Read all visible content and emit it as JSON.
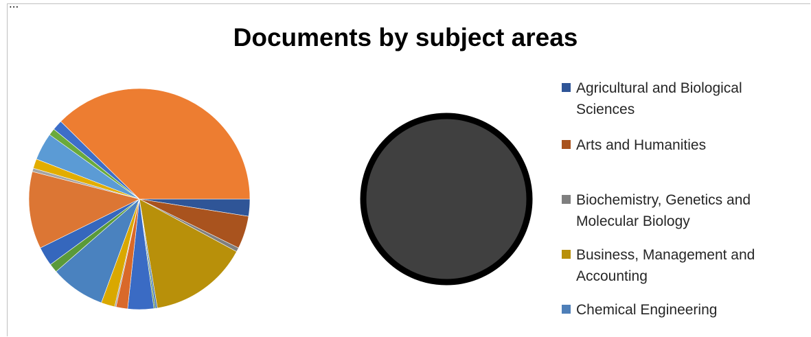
{
  "page": {
    "caption": "...",
    "title": "Documents by subject areas"
  },
  "chart_data": {
    "type": "pie",
    "title": "Documents by subject areas",
    "start_angle_deg": 0,
    "direction": "clockwise",
    "slices": [
      {
        "label": "Agricultural and Biological Sciences",
        "value": 2.5,
        "color": "#2f5597"
      },
      {
        "label": "Arts and Humanities",
        "value": 4.8,
        "color": "#a9531e"
      },
      {
        "label": "Biochemistry, Genetics and Molecular Biology",
        "value": 0.6,
        "color": "#7f7f7f"
      },
      {
        "label": "Business, Management and Accounting",
        "value": 14.5,
        "color": "#b8900a"
      },
      {
        "label": "Chemical Engineering",
        "value": 0.3,
        "color": "#4e7fb8"
      },
      {
        "label": "",
        "value": 0.2,
        "color": "#548235"
      },
      {
        "label": "",
        "value": 3.8,
        "color": "#3a6bc4"
      },
      {
        "label": "",
        "value": 1.7,
        "color": "#d9692a"
      },
      {
        "label": "",
        "value": 0.2,
        "color": "#9a9a9a"
      },
      {
        "label": "",
        "value": 2.0,
        "color": "#d9a800"
      },
      {
        "label": "",
        "value": 8.0,
        "color": "#4a82bf"
      },
      {
        "label": "",
        "value": 1.3,
        "color": "#5a9a3a"
      },
      {
        "label": "",
        "value": 2.8,
        "color": "#3567bd"
      },
      {
        "label": "",
        "value": 11.3,
        "color": "#dc7634"
      },
      {
        "label": "",
        "value": 0.5,
        "color": "#a5a5a5"
      },
      {
        "label": "",
        "value": 1.4,
        "color": "#e2ad00"
      },
      {
        "label": "",
        "value": 4.0,
        "color": "#5b9bd5"
      },
      {
        "label": "",
        "value": 1.0,
        "color": "#6aaa3c"
      },
      {
        "label": "",
        "value": 1.5,
        "color": "#3d6ec8"
      },
      {
        "label": "",
        "value": 37.6,
        "color": "#ed7d31"
      }
    ],
    "legend": {
      "position": "right",
      "entries": [
        {
          "label": "Agricultural and Biological Sciences",
          "color": "#2f5597"
        },
        {
          "label": "Arts and Humanities",
          "color": "#a9531e"
        },
        {
          "label": "Biochemistry, Genetics and Molecular Biology",
          "color": "#7f7f7f"
        },
        {
          "label": "Business, Management and Accounting",
          "color": "#b8900a"
        },
        {
          "label": "Chemical Engineering",
          "color": "#4e7fb8"
        }
      ]
    },
    "placeholder_circle": {
      "fill": "#404040",
      "stroke": "#000000"
    }
  }
}
